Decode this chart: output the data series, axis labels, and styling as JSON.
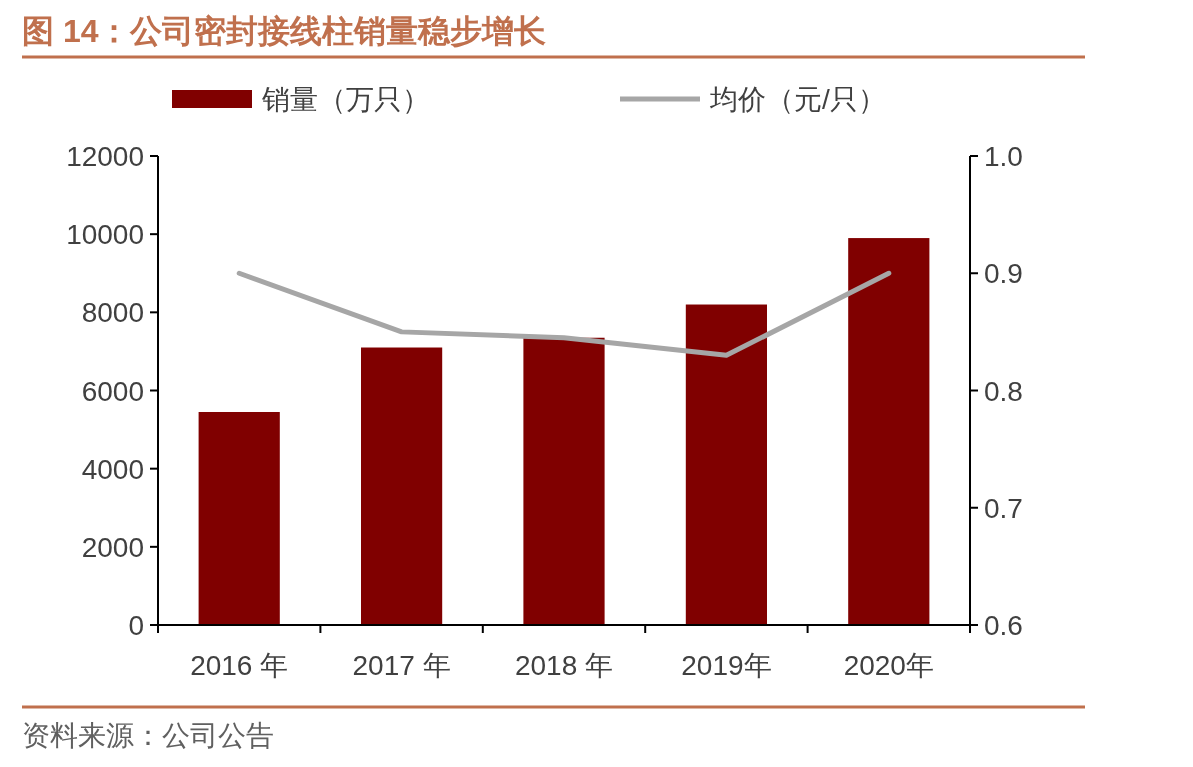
{
  "chart_data": {
    "type": "bar",
    "title": "图 14：公司密封接线柱销量稳步增长",
    "categories": [
      "2016 年",
      "2017 年",
      "2018 年",
      "2019年",
      "2020年"
    ],
    "series": [
      {
        "name": "销量（万只）",
        "color": "#800000",
        "values": [
          5450,
          7100,
          7350,
          8200,
          9900
        ]
      },
      {
        "name": "均价（元/只）",
        "type": "line",
        "axis": "y2",
        "color": "#a6a6a6",
        "values": [
          0.9,
          0.85,
          0.845,
          0.83,
          0.9
        ]
      }
    ],
    "ylim": [
      0,
      12000
    ],
    "yticks": [
      0,
      2000,
      4000,
      6000,
      8000,
      10000,
      12000
    ],
    "y2lim": [
      0.6,
      1.0
    ],
    "y2ticks": [
      {
        "value": 0.6,
        "label": "0.6"
      },
      {
        "value": 0.7,
        "label": "0.7"
      },
      {
        "value": 0.8,
        "label": "0.8"
      },
      {
        "value": 0.9,
        "label": "0.9"
      },
      {
        "value": 1.0,
        "label": "1.0"
      }
    ],
    "legend": "top",
    "grid": false,
    "annotations": [
      "资料来源：公司公告"
    ]
  }
}
